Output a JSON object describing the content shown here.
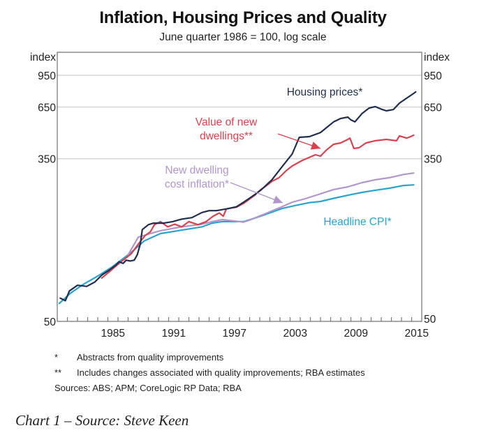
{
  "chart_data": {
    "type": "line",
    "title": "Inflation, Housing Prices and Quality",
    "subtitle": "June quarter 1986 = 100, log scale",
    "ylabel_left": "index",
    "ylabel_right": "index",
    "yscale": "log",
    "ylim": [
      50,
      1000
    ],
    "yticks": [
      50,
      350,
      650,
      950
    ],
    "ytick_labels": [
      "50",
      "350",
      "650",
      "950"
    ],
    "xlim": [
      1980,
      2016
    ],
    "xticks_major": [
      1985,
      1991,
      1997,
      2003,
      2009,
      2015
    ],
    "xtick_labels": [
      "1985",
      "1991",
      "1997",
      "2003",
      "2009",
      "2015"
    ],
    "xticks_minor_every_year": true,
    "grid": "horizontal",
    "series": [
      {
        "name": "Housing prices*",
        "color": "#1f2d4e",
        "points": [
          [
            1980.3,
            66
          ],
          [
            1980.8,
            64
          ],
          [
            1981.2,
            72
          ],
          [
            1982.0,
            77
          ],
          [
            1982.9,
            76
          ],
          [
            1983.7,
            80
          ],
          [
            1984.4,
            87
          ],
          [
            1985.1,
            92
          ],
          [
            1985.8,
            98
          ],
          [
            1986.1,
            102
          ],
          [
            1986.5,
            100
          ],
          [
            1986.8,
            104
          ],
          [
            1987.2,
            103
          ],
          [
            1987.6,
            104
          ],
          [
            1987.9,
            111
          ],
          [
            1988.2,
            126
          ],
          [
            1988.4,
            150
          ],
          [
            1989.0,
            159
          ],
          [
            1989.5,
            162
          ],
          [
            1990.5,
            162
          ],
          [
            1991.4,
            165
          ],
          [
            1992.3,
            170
          ],
          [
            1993.3,
            173
          ],
          [
            1994.3,
            184
          ],
          [
            1995.0,
            188
          ],
          [
            1995.7,
            188
          ],
          [
            1996.7,
            192
          ],
          [
            1997.7,
            197
          ],
          [
            1998.4,
            208
          ],
          [
            1999.5,
            228
          ],
          [
            2000.1,
            240
          ],
          [
            2001.2,
            272
          ],
          [
            2002.2,
            318
          ],
          [
            2003.2,
            370
          ],
          [
            2003.9,
            452
          ],
          [
            2004.9,
            456
          ],
          [
            2006.0,
            479
          ],
          [
            2006.6,
            508
          ],
          [
            2007.3,
            544
          ],
          [
            2008.0,
            567
          ],
          [
            2008.7,
            576
          ],
          [
            2009.0,
            557
          ],
          [
            2009.4,
            544
          ],
          [
            2010.1,
            601
          ],
          [
            2010.8,
            642
          ],
          [
            2011.4,
            653
          ],
          [
            2012.1,
            631
          ],
          [
            2012.5,
            621
          ],
          [
            2013.2,
            631
          ],
          [
            2013.8,
            681
          ],
          [
            2014.5,
            722
          ],
          [
            2015.2,
            765
          ],
          [
            2015.4,
            778
          ]
        ]
      },
      {
        "name": "Value of new dwellings**",
        "color": "#d9414f",
        "points": [
          [
            1984.4,
            84
          ],
          [
            1985.1,
            90
          ],
          [
            1985.8,
            97
          ],
          [
            1986.5,
            104
          ],
          [
            1987.3,
            112
          ],
          [
            1988.0,
            126
          ],
          [
            1988.7,
            140
          ],
          [
            1989.2,
            146
          ],
          [
            1989.6,
            159
          ],
          [
            1990.2,
            165
          ],
          [
            1990.9,
            155
          ],
          [
            1991.6,
            160
          ],
          [
            1992.3,
            155
          ],
          [
            1993.0,
            165
          ],
          [
            1993.9,
            159
          ],
          [
            1994.7,
            165
          ],
          [
            1995.4,
            176
          ],
          [
            1996.0,
            183
          ],
          [
            1996.4,
            176
          ],
          [
            1996.7,
            192
          ],
          [
            1997.7,
            196
          ],
          [
            1998.4,
            205
          ],
          [
            1999.5,
            226
          ],
          [
            2000.1,
            242
          ],
          [
            2000.5,
            250
          ],
          [
            2001.2,
            267
          ],
          [
            2001.9,
            279
          ],
          [
            2002.6,
            303
          ],
          [
            2003.2,
            321
          ],
          [
            2004.2,
            343
          ],
          [
            2005.5,
            367
          ],
          [
            2006.0,
            361
          ],
          [
            2006.6,
            389
          ],
          [
            2007.3,
            416
          ],
          [
            2008.0,
            423
          ],
          [
            2008.7,
            441
          ],
          [
            2008.9,
            448
          ],
          [
            2009.3,
            396
          ],
          [
            2009.8,
            399
          ],
          [
            2010.5,
            423
          ],
          [
            2011.4,
            434
          ],
          [
            2012.5,
            441
          ],
          [
            2013.5,
            434
          ],
          [
            2013.8,
            460
          ],
          [
            2014.5,
            448
          ],
          [
            2014.9,
            456
          ],
          [
            2015.2,
            464
          ]
        ]
      },
      {
        "name": "New dwelling cost inflation*",
        "color": "#b096cc",
        "points": [
          [
            1987.0,
            111
          ],
          [
            1988.0,
            137
          ],
          [
            1989.2,
            143
          ],
          [
            1990.2,
            148
          ],
          [
            1992.3,
            155
          ],
          [
            1994.3,
            160
          ],
          [
            1995.3,
            165
          ],
          [
            1996.3,
            169
          ],
          [
            1998.4,
            164
          ],
          [
            1999.0,
            168
          ],
          [
            2000.5,
            181
          ],
          [
            2002.0,
            195
          ],
          [
            2003.2,
            208
          ],
          [
            2004.5,
            217
          ],
          [
            2006.0,
            230
          ],
          [
            2007.3,
            242
          ],
          [
            2008.7,
            250
          ],
          [
            2010.1,
            263
          ],
          [
            2011.4,
            272
          ],
          [
            2012.8,
            279
          ],
          [
            2014.2,
            290
          ],
          [
            2015.2,
            295
          ]
        ]
      },
      {
        "name": "Headline CPI*",
        "color": "#2aa3cc",
        "points": [
          [
            1980.2,
            62
          ],
          [
            1981.3,
            70
          ],
          [
            1982.6,
            78
          ],
          [
            1984.0,
            86
          ],
          [
            1985.3,
            95
          ],
          [
            1986.3,
            104
          ],
          [
            1987.3,
            114
          ],
          [
            1988.6,
            131
          ],
          [
            1990.2,
            143
          ],
          [
            1992.3,
            149
          ],
          [
            1994.3,
            155
          ],
          [
            1995.3,
            162
          ],
          [
            1996.3,
            165
          ],
          [
            1998.4,
            165
          ],
          [
            1999.5,
            172
          ],
          [
            2001.0,
            183
          ],
          [
            2002.2,
            193
          ],
          [
            2003.5,
            200
          ],
          [
            2004.9,
            207
          ],
          [
            2006.0,
            210
          ],
          [
            2007.3,
            218
          ],
          [
            2008.7,
            226
          ],
          [
            2010.1,
            234
          ],
          [
            2011.4,
            240
          ],
          [
            2012.8,
            246
          ],
          [
            2014.2,
            254
          ],
          [
            2015.2,
            256
          ]
        ]
      }
    ],
    "annotations": [
      {
        "text_lines": [
          "Housing prices*"
        ],
        "series": "Housing prices*",
        "arrow": false
      },
      {
        "text_lines": [
          "Value of new",
          "dwellings**"
        ],
        "series": "Value of new dwellings**",
        "arrow": true
      },
      {
        "text_lines": [
          "New dwelling",
          "cost inflation*"
        ],
        "series": "New dwelling cost inflation*",
        "arrow": true
      },
      {
        "text_lines": [
          "Headline CPI*"
        ],
        "series": "Headline CPI*",
        "arrow": false
      }
    ]
  },
  "footnotes": [
    {
      "mark": "*",
      "text": "Abstracts from quality improvements"
    },
    {
      "mark": "**",
      "text": "Includes changes associated with quality improvements; RBA estimates"
    }
  ],
  "sources": "Sources:  ABS; APM; CoreLogic RP Data; RBA",
  "caption": "Chart 1 – Source: Steve Keen"
}
